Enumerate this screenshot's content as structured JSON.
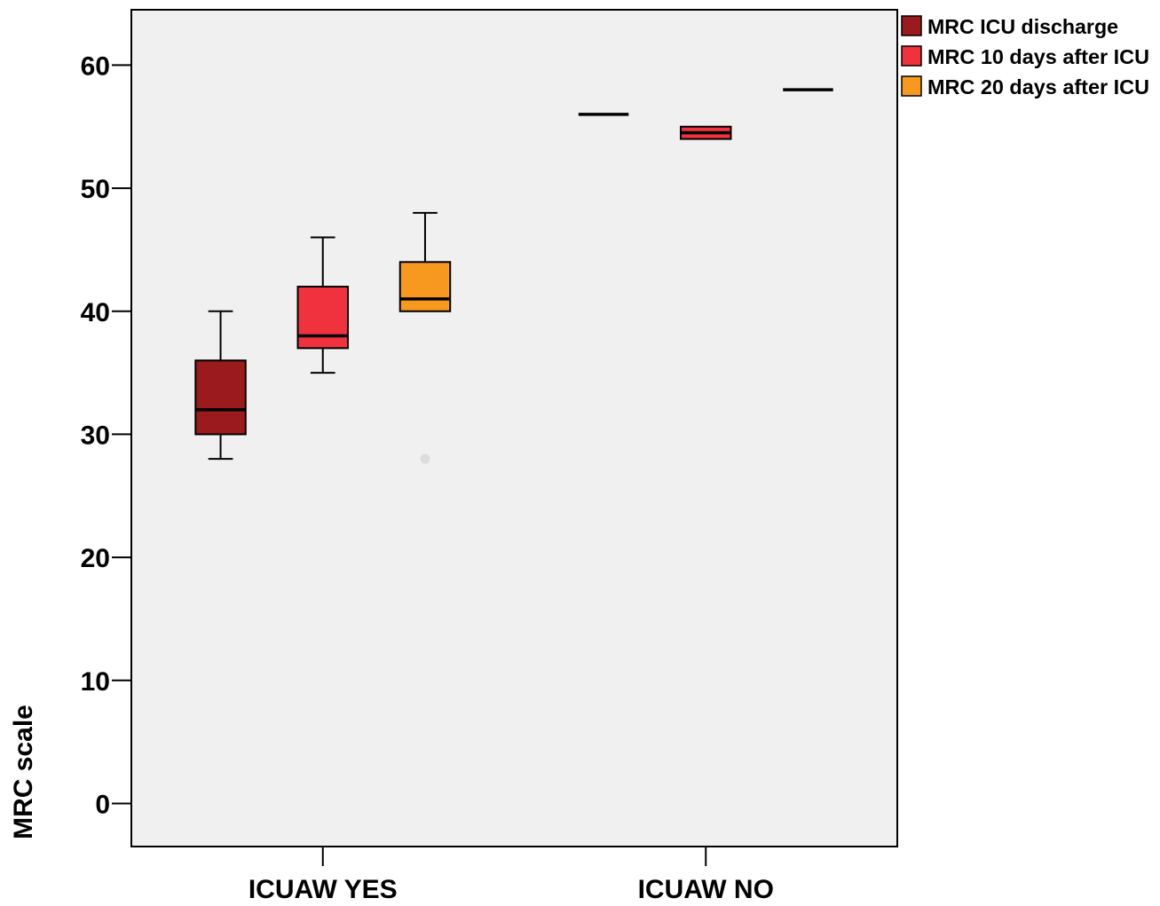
{
  "chart_data": {
    "type": "boxplot",
    "ylabel": "MRC scale",
    "xlabel": "",
    "ylim": [
      -3.5,
      64.5
    ],
    "yticks": [
      0,
      10,
      20,
      30,
      40,
      50,
      60
    ],
    "ytick_labels": [
      "0",
      "10",
      "20",
      "30",
      "40",
      "50",
      "60"
    ],
    "grid": false,
    "legend_position": "top-right",
    "categories": [
      "ICUAW YES",
      "ICUAW NO"
    ],
    "series": [
      {
        "name": "MRC ICU discharge",
        "color": "#9b1a1d",
        "boxes": [
          {
            "min": 28,
            "q1": 30,
            "median": 32,
            "q3": 36,
            "max": 40,
            "outliers": []
          },
          {
            "min": 56,
            "q1": 56,
            "median": 56,
            "q3": 56,
            "max": 56,
            "outliers": []
          }
        ]
      },
      {
        "name": "MRC 10 days after ICU",
        "color": "#ef323d",
        "boxes": [
          {
            "min": 35,
            "q1": 37,
            "median": 38,
            "q3": 42,
            "max": 46,
            "outliers": []
          },
          {
            "min": 54,
            "q1": 54,
            "median": 54.5,
            "q3": 55,
            "max": 55,
            "outliers": []
          }
        ]
      },
      {
        "name": "MRC 20 days after ICU",
        "color": "#f7991f",
        "boxes": [
          {
            "min": 40,
            "q1": 40,
            "median": 41,
            "q3": 44,
            "max": 48,
            "outliers": [
              28
            ]
          },
          {
            "min": 58,
            "q1": 58,
            "median": 58,
            "q3": 58,
            "max": 58,
            "outliers": []
          }
        ]
      }
    ]
  }
}
